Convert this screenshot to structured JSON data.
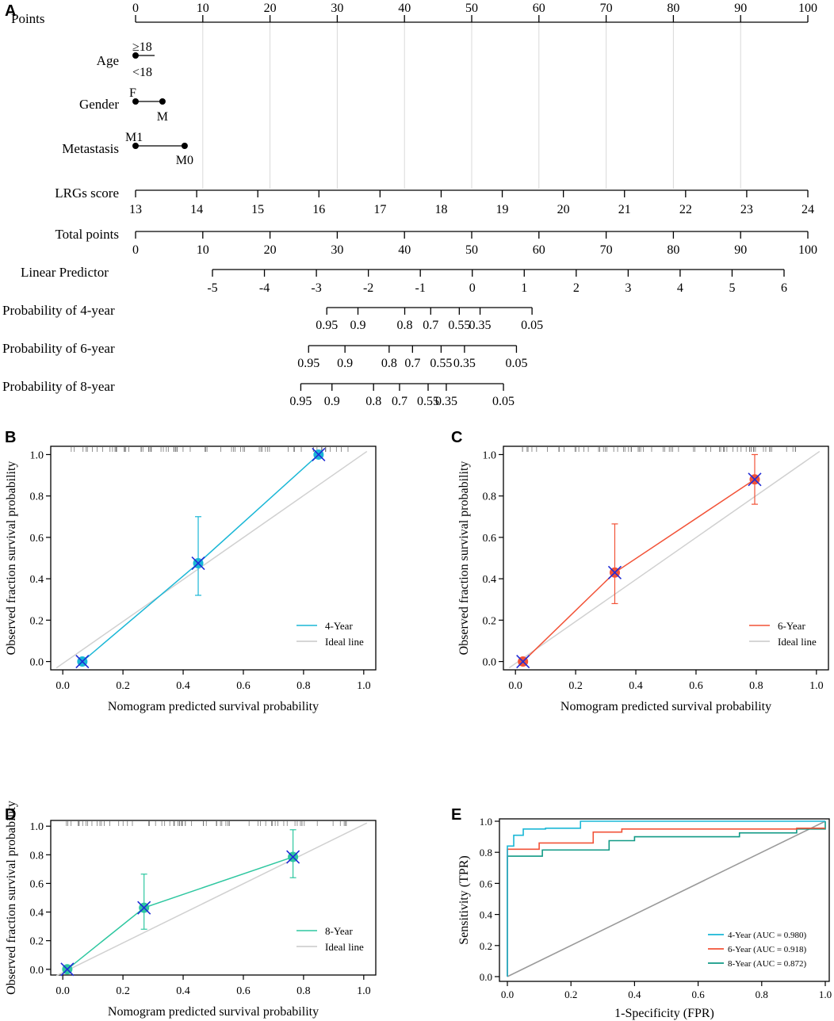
{
  "panel_letters": {
    "a": "A",
    "b": "B",
    "c": "C",
    "d": "D",
    "e": "E"
  },
  "chart_data": [
    {
      "type": "nomogram",
      "panel": "A",
      "points_axis": {
        "label": "Points",
        "ticks": [
          0,
          10,
          20,
          30,
          40,
          50,
          60,
          70,
          80,
          90,
          100
        ]
      },
      "variables": [
        {
          "label": "Age",
          "levels": [
            {
              "name": "≥18",
              "points": 0
            },
            {
              "name": "<18",
              "points": 0
            }
          ]
        },
        {
          "label": "Gender",
          "levels": [
            {
              "name": "F",
              "points": 0
            },
            {
              "name": "M",
              "points": 4
            }
          ]
        },
        {
          "label": "Metastasis",
          "levels": [
            {
              "name": "M1",
              "points": 0
            },
            {
              "name": "M0",
              "points": 7.3
            }
          ]
        },
        {
          "label": "LRGs score",
          "ticks": [
            13,
            14,
            15,
            16,
            17,
            18,
            19,
            20,
            21,
            22,
            23,
            24
          ],
          "points_per_unit": 9.09
        }
      ],
      "total_points": {
        "label": "Total points",
        "ticks": [
          0,
          10,
          20,
          30,
          40,
          50,
          60,
          70,
          80,
          90,
          100
        ]
      },
      "linear_predictor": {
        "label": "Linear Predictor",
        "ticks": [
          -5,
          -4,
          -3,
          -2,
          -1,
          0,
          1,
          2,
          3,
          4,
          5,
          6
        ]
      },
      "probabilities": [
        {
          "label": "Probability of 4-year",
          "ticks": [
            "0.95",
            "0.9",
            "0.8",
            "0.7",
            "0.55",
            "0.35",
            "0.05"
          ],
          "lp": [
            -2.8,
            -2.2,
            -1.3,
            -0.8,
            -0.25,
            0.15,
            1.15
          ]
        },
        {
          "label": "Probability of 6-year",
          "ticks": [
            "0.95",
            "0.9",
            "0.8",
            "0.7",
            "0.55",
            "0.35",
            "0.05"
          ],
          "lp": [
            -3.15,
            -2.45,
            -1.6,
            -1.15,
            -0.6,
            -0.15,
            0.85
          ]
        },
        {
          "label": "Probability of 8-year",
          "ticks": [
            "0.95",
            "0.9",
            "0.8",
            "0.7",
            "0.55",
            "0.35",
            "0.05"
          ],
          "lp": [
            -3.3,
            -2.7,
            -1.9,
            -1.4,
            -0.85,
            -0.5,
            0.6
          ]
        }
      ]
    },
    {
      "type": "line",
      "panel": "B",
      "xlabel": "Nomogram predicted survival probability",
      "ylabel": "Observed fraction survival probability",
      "xlim": [
        0,
        1
      ],
      "ylim": [
        0,
        1
      ],
      "ticks": [
        "0.0",
        "0.2",
        "0.4",
        "0.6",
        "0.8",
        "1.0"
      ],
      "color": "#1ab7d6",
      "x": [
        0.065,
        0.45,
        0.85
      ],
      "y": [
        0.0,
        0.475,
        1.0
      ],
      "ci_low": [
        0.0,
        0.32,
        1.0
      ],
      "ci_high": [
        0.0,
        0.7,
        1.0
      ],
      "legend": [
        "4-Year",
        "Ideal line"
      ]
    },
    {
      "type": "line",
      "panel": "C",
      "xlabel": "Nomogram predicted survival probability",
      "ylabel": "Observed fraction survival probability",
      "xlim": [
        0,
        1
      ],
      "ylim": [
        0,
        1
      ],
      "ticks": [
        "0.0",
        "0.2",
        "0.4",
        "0.6",
        "0.8",
        "1.0"
      ],
      "color": "#f25237",
      "x": [
        0.025,
        0.33,
        0.795
      ],
      "y": [
        0.0,
        0.43,
        0.88
      ],
      "ci_low": [
        0.0,
        0.28,
        0.76
      ],
      "ci_high": [
        0.0,
        0.665,
        1.0
      ],
      "legend": [
        "6-Year",
        "Ideal line"
      ]
    },
    {
      "type": "line",
      "panel": "D",
      "xlabel": "Nomogram predicted survival probability",
      "ylabel": "Observed fraction survival probability",
      "xlim": [
        0,
        1
      ],
      "ylim": [
        0,
        1
      ],
      "ticks": [
        "0.0",
        "0.2",
        "0.4",
        "0.6",
        "0.8",
        "1.0"
      ],
      "color": "#2ec7a0",
      "x": [
        0.015,
        0.27,
        0.765
      ],
      "y": [
        0.0,
        0.43,
        0.785
      ],
      "ci_low": [
        0.0,
        0.28,
        0.64
      ],
      "ci_high": [
        0.0,
        0.665,
        0.975
      ],
      "legend": [
        "8-Year",
        "Ideal line"
      ]
    },
    {
      "type": "line",
      "panel": "E",
      "xlabel": "1-Specificity (FPR)",
      "ylabel": "Sensitivity (TPR)",
      "xlim": [
        0,
        1
      ],
      "ylim": [
        0,
        1
      ],
      "ticks": [
        "0.0",
        "0.2",
        "0.4",
        "0.6",
        "0.8",
        "1.0"
      ],
      "series": [
        {
          "name": "4-Year (AUC = 0.980)",
          "color": "#1ab7d6",
          "x": [
            0,
            0,
            0.02,
            0.02,
            0.05,
            0.05,
            0.12,
            0.12,
            0.23,
            0.23,
            1.0
          ],
          "y": [
            0,
            0.84,
            0.84,
            0.91,
            0.91,
            0.95,
            0.95,
            0.955,
            0.955,
            1.0,
            1.0
          ]
        },
        {
          "name": "6-Year (AUC = 0.918)",
          "color": "#f25237",
          "x": [
            0,
            0,
            0.1,
            0.1,
            0.27,
            0.27,
            0.36,
            0.36,
            0.91,
            0.91,
            1.0
          ],
          "y": [
            0,
            0.82,
            0.82,
            0.86,
            0.86,
            0.93,
            0.93,
            0.95,
            0.95,
            0.955,
            0.955
          ]
        },
        {
          "name": "8-Year (AUC = 0.872)",
          "color": "#119a86",
          "x": [
            0,
            0,
            0.11,
            0.11,
            0.32,
            0.32,
            0.4,
            0.4,
            0.73,
            0.73,
            0.91,
            0.91,
            1.0,
            1.0
          ],
          "y": [
            0,
            0.775,
            0.775,
            0.815,
            0.815,
            0.875,
            0.875,
            0.9,
            0.9,
            0.925,
            0.925,
            0.95,
            0.95,
            1.0
          ]
        },
        {
          "name": "diagonal",
          "color": "#9a9a9a",
          "x": [
            0,
            1
          ],
          "y": [
            0,
            1
          ]
        }
      ]
    }
  ]
}
